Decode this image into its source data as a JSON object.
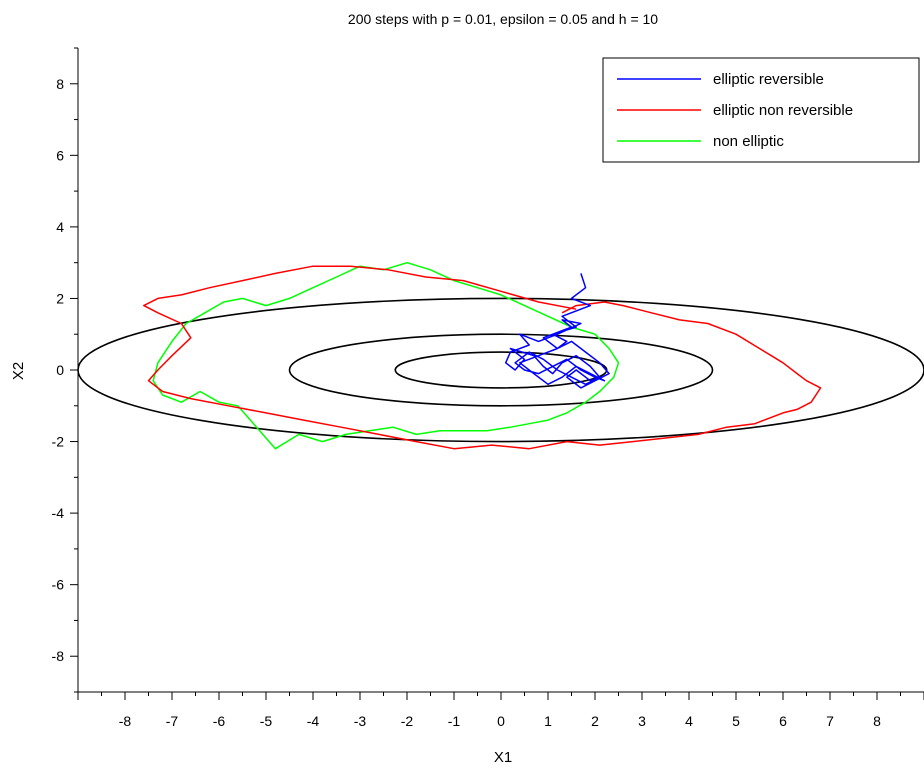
{
  "chart_data": {
    "type": "line",
    "title": "200 steps with p = 0.01, epsilon = 0.05 and h = 10",
    "xlabel": "X1",
    "ylabel": "X2",
    "xlim": [
      -9,
      9
    ],
    "ylim": [
      -9,
      9
    ],
    "xticks": [
      -8,
      -7,
      -6,
      -5,
      -4,
      -3,
      -2,
      -1,
      0,
      1,
      2,
      3,
      4,
      5,
      6,
      7,
      8
    ],
    "yticks": [
      -8,
      -6,
      -4,
      -2,
      0,
      2,
      4,
      6,
      8
    ],
    "legend_position": "top-right",
    "ellipses": [
      {
        "cx": 0,
        "cy": 0,
        "rx": 9,
        "ry": 2,
        "color": "#000000"
      },
      {
        "cx": 0,
        "cy": 0,
        "rx": 4.5,
        "ry": 1,
        "color": "#000000"
      },
      {
        "cx": 0,
        "cy": 0,
        "rx": 2.25,
        "ry": 0.5,
        "color": "#000000"
      }
    ],
    "series": [
      {
        "name": "elliptic reversible",
        "color": "#0000ff",
        "x": [
          1.7,
          1.8,
          1.5,
          1.9,
          1.3,
          1.6,
          1.1,
          1.4,
          1.2,
          0.9,
          1.5,
          1.3,
          1.7,
          1.2,
          0.8,
          0.4,
          0.6,
          0.2,
          0.1,
          0.3,
          0.5,
          0.2,
          0.7,
          0.9,
          1.1,
          1.3,
          1.6,
          1.9,
          2.1,
          1.8,
          1.5,
          1.2,
          0.9,
          0.6,
          0.3,
          0.5,
          0.8,
          1.1,
          1.4,
          1.7,
          2.0,
          2.2,
          1.9,
          1.6,
          1.3,
          1.0,
          0.7,
          0.4,
          0.8,
          1.2,
          1.5,
          1.8,
          2.1,
          2.3,
          2.0,
          1.7,
          1.4,
          1.6,
          1.9,
          2.1
        ],
        "y": [
          2.7,
          2.3,
          2.0,
          1.8,
          1.5,
          1.2,
          1.0,
          0.8,
          0.6,
          0.9,
          1.2,
          1.4,
          1.3,
          1.0,
          0.8,
          1.0,
          0.7,
          0.5,
          0.2,
          0.0,
          0.3,
          0.6,
          0.4,
          0.1,
          -0.1,
          0.2,
          0.4,
          0.1,
          -0.2,
          -0.4,
          -0.2,
          0.0,
          0.3,
          0.5,
          0.2,
          0.0,
          -0.1,
          0.1,
          0.3,
          0.0,
          -0.2,
          -0.3,
          -0.1,
          0.1,
          -0.2,
          -0.4,
          -0.1,
          0.2,
          0.4,
          0.6,
          0.8,
          0.5,
          0.2,
          -0.1,
          -0.3,
          -0.5,
          -0.2,
          0.0,
          -0.3,
          -0.2
        ]
      },
      {
        "name": "elliptic non reversible",
        "color": "#ff0000",
        "x": [
          1.3,
          1.6,
          2.2,
          2.6,
          3.2,
          3.8,
          4.4,
          5.0,
          5.5,
          6.0,
          6.3,
          6.5,
          6.8,
          6.6,
          6.3,
          6.0,
          5.4,
          4.8,
          4.2,
          3.5,
          2.8,
          2.1,
          1.4,
          0.6,
          -0.2,
          -1.0,
          -1.8,
          -2.6,
          -3.4,
          -4.2,
          -5.0,
          -5.8,
          -6.6,
          -7.2,
          -7.5,
          -7.3,
          -7.0,
          -6.6,
          -6.8,
          -7.3,
          -7.6,
          -7.3,
          -6.8,
          -6.2,
          -5.5,
          -4.8,
          -4.0,
          -3.2,
          -2.4,
          -1.6,
          -0.8,
          0.0,
          0.8,
          1.6
        ],
        "y": [
          1.6,
          1.8,
          1.9,
          1.8,
          1.6,
          1.4,
          1.3,
          1.0,
          0.6,
          0.2,
          -0.1,
          -0.3,
          -0.5,
          -0.9,
          -1.1,
          -1.2,
          -1.5,
          -1.6,
          -1.8,
          -1.9,
          -2.0,
          -2.1,
          -2.0,
          -2.2,
          -2.1,
          -2.2,
          -2.0,
          -1.8,
          -1.6,
          -1.4,
          -1.2,
          -1.0,
          -0.8,
          -0.6,
          -0.3,
          0.0,
          0.4,
          0.9,
          1.3,
          1.6,
          1.8,
          2.0,
          2.1,
          2.3,
          2.5,
          2.7,
          2.9,
          2.9,
          2.8,
          2.6,
          2.5,
          2.2,
          1.9,
          1.7
        ]
      },
      {
        "name": "non elliptic",
        "color": "#00ff00",
        "x": [
          2.0,
          2.3,
          2.5,
          2.4,
          2.1,
          1.8,
          1.4,
          1.0,
          0.6,
          0.2,
          -0.3,
          -0.8,
          -1.3,
          -1.8,
          -2.3,
          -2.8,
          -3.3,
          -3.8,
          -4.3,
          -4.8,
          -5.2,
          -5.6,
          -6.0,
          -6.4,
          -6.8,
          -7.2,
          -7.4,
          -7.3,
          -7.0,
          -6.7,
          -6.3,
          -5.9,
          -5.5,
          -5.0,
          -4.5,
          -4.0,
          -3.5,
          -3.0,
          -2.5,
          -2.0,
          -1.5,
          -1.0,
          -0.5,
          0.0,
          0.5,
          1.0,
          1.5,
          2.0
        ],
        "y": [
          1.0,
          0.6,
          0.2,
          -0.2,
          -0.6,
          -0.9,
          -1.2,
          -1.4,
          -1.5,
          -1.6,
          -1.7,
          -1.7,
          -1.7,
          -1.8,
          -1.6,
          -1.7,
          -1.8,
          -2.0,
          -1.8,
          -2.2,
          -1.6,
          -1.0,
          -0.9,
          -0.6,
          -0.9,
          -0.7,
          -0.3,
          0.2,
          0.8,
          1.3,
          1.6,
          1.9,
          2.0,
          1.8,
          2.0,
          2.3,
          2.6,
          2.9,
          2.8,
          3.0,
          2.8,
          2.5,
          2.3,
          2.1,
          1.8,
          1.5,
          1.2,
          1.0
        ]
      }
    ]
  }
}
